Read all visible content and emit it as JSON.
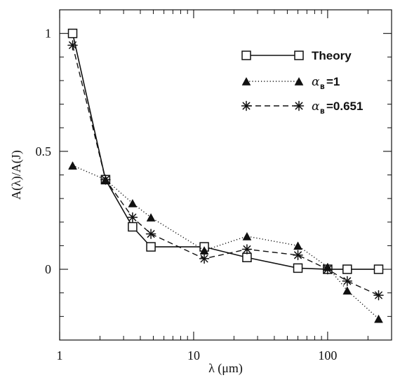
{
  "chart_data": {
    "type": "line",
    "xscale": "log",
    "xlim": [
      1,
      300
    ],
    "ylim": [
      -0.3,
      1.1
    ],
    "xticks": [
      1,
      10,
      100
    ],
    "xtick_labels": [
      "1",
      "10",
      "100"
    ],
    "yticks": [
      0,
      0.5,
      1
    ],
    "ytick_labels": [
      "0",
      "0.5",
      "1"
    ],
    "xlabel": "λ (μm)",
    "ylabel": "A(λ)/A(J)",
    "series": [
      {
        "name": "Theory",
        "style": "solid",
        "marker": "square-open",
        "x": [
          1.25,
          2.2,
          3.5,
          4.8,
          12,
          25,
          60,
          100,
          140,
          240
        ],
        "y": [
          1.0,
          0.38,
          0.18,
          0.095,
          0.095,
          0.05,
          0.005,
          0.0,
          0.0,
          0.0
        ]
      },
      {
        "name": "αB=1",
        "style": "dotted",
        "marker": "triangle-filled",
        "x": [
          1.25,
          2.2,
          3.5,
          4.8,
          12,
          25,
          60,
          100,
          140,
          240
        ],
        "y": [
          0.44,
          0.38,
          0.28,
          0.22,
          0.08,
          0.14,
          0.1,
          0.01,
          -0.09,
          -0.21
        ]
      },
      {
        "name": "αB=0.651",
        "style": "dashed",
        "marker": "asterisk",
        "x": [
          1.25,
          2.2,
          3.5,
          4.8,
          12,
          25,
          60,
          100,
          140,
          240
        ],
        "y": [
          0.95,
          0.38,
          0.22,
          0.15,
          0.045,
          0.085,
          0.06,
          0.0,
          -0.05,
          -0.11
        ]
      }
    ],
    "legend": {
      "placement": "top-right",
      "items": [
        {
          "label": "Theory"
        },
        {
          "symbol": "α",
          "subscript": "B",
          "value_text": "=1"
        },
        {
          "symbol": "α",
          "subscript": "B",
          "value_text": "=0.651"
        }
      ]
    },
    "grid": false
  }
}
